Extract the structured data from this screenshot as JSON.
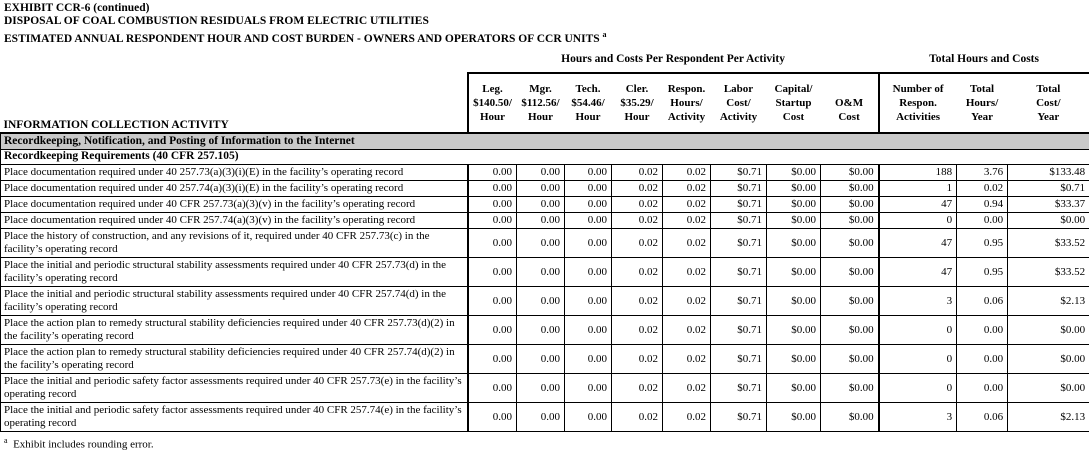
{
  "title": {
    "line1": "EXHIBIT CCR-6 (continued)",
    "line2": "DISPOSAL OF COAL COMBUSTION RESIDUALS FROM ELECTRIC UTILITIES",
    "line3": "ESTIMATED ANNUAL RESPONDENT HOUR AND COST BURDEN - OWNERS AND OPERATORS OF CCR UNITS",
    "line3_sup": "a"
  },
  "table": {
    "group_headers": {
      "per_activity": "Hours and Costs Per Respondent Per Activity",
      "totals": "Total Hours and Costs"
    },
    "activity_header": "INFORMATION COLLECTION ACTIVITY",
    "columns": [
      {
        "lines": [
          "Leg.",
          "$140.50/",
          "Hour"
        ]
      },
      {
        "lines": [
          "Mgr.",
          "$112.56/",
          "Hour"
        ]
      },
      {
        "lines": [
          "Tech.",
          "$54.46/",
          "Hour"
        ]
      },
      {
        "lines": [
          "Cler.",
          "$35.29/",
          "Hour"
        ]
      },
      {
        "lines": [
          "Respon.",
          "Hours/",
          "Activity"
        ]
      },
      {
        "lines": [
          "Labor",
          "Cost/",
          "Activity"
        ]
      },
      {
        "lines": [
          "Capital/",
          "Startup",
          "Cost"
        ]
      },
      {
        "lines": [
          "",
          "O&M",
          "Cost"
        ]
      },
      {
        "lines": [
          "Number of",
          "Respon.",
          "Activities"
        ]
      },
      {
        "lines": [
          "Total",
          "Hours/",
          "Year"
        ]
      },
      {
        "lines": [
          "Total",
          "Cost/",
          "Year"
        ]
      }
    ],
    "section_header": "Recordkeeping, Notification, and Posting of Information to the Internet",
    "subsection_header": "Recordkeeping Requirements (40 CFR 257.105)",
    "rows": [
      {
        "activity": "Place documentation required under 40 257.73(a)(3)(i)(E) in the facility’s operating record",
        "values": [
          "0.00",
          "0.00",
          "0.00",
          "0.02",
          "0.02",
          "$0.71",
          "$0.00",
          "$0.00",
          "188",
          "3.76",
          "$133.48"
        ]
      },
      {
        "activity": "Place documentation required under 40 257.74(a)(3)(i)(E) in the facility’s operating record",
        "values": [
          "0.00",
          "0.00",
          "0.00",
          "0.02",
          "0.02",
          "$0.71",
          "$0.00",
          "$0.00",
          "1",
          "0.02",
          "$0.71"
        ]
      },
      {
        "activity": "Place documentation required under 40 CFR 257.73(a)(3)(v) in the facility’s operating record",
        "values": [
          "0.00",
          "0.00",
          "0.00",
          "0.02",
          "0.02",
          "$0.71",
          "$0.00",
          "$0.00",
          "47",
          "0.94",
          "$33.37"
        ]
      },
      {
        "activity": "Place documentation required under 40 CFR 257.74(a)(3)(v) in the facility’s operating record",
        "values": [
          "0.00",
          "0.00",
          "0.00",
          "0.02",
          "0.02",
          "$0.71",
          "$0.00",
          "$0.00",
          "0",
          "0.00",
          "$0.00"
        ]
      },
      {
        "activity": "Place the history of construction, and any revisions of it, required under 40 CFR 257.73(c) in the facility’s operating record",
        "values": [
          "0.00",
          "0.00",
          "0.00",
          "0.02",
          "0.02",
          "$0.71",
          "$0.00",
          "$0.00",
          "47",
          "0.95",
          "$33.52"
        ]
      },
      {
        "activity": "Place the initial and periodic structural stability assessments required under 40 CFR 257.73(d) in the facility’s operating record",
        "values": [
          "0.00",
          "0.00",
          "0.00",
          "0.02",
          "0.02",
          "$0.71",
          "$0.00",
          "$0.00",
          "47",
          "0.95",
          "$33.52"
        ]
      },
      {
        "activity": "Place the initial and periodic structural stability assessments required under 40 CFR 257.74(d) in the facility’s operating record",
        "values": [
          "0.00",
          "0.00",
          "0.00",
          "0.02",
          "0.02",
          "$0.71",
          "$0.00",
          "$0.00",
          "3",
          "0.06",
          "$2.13"
        ]
      },
      {
        "activity": "Place the action plan to remedy structural stability deficiencies required under 40 CFR 257.73(d)(2) in the facility’s  operating record",
        "values": [
          "0.00",
          "0.00",
          "0.00",
          "0.02",
          "0.02",
          "$0.71",
          "$0.00",
          "$0.00",
          "0",
          "0.00",
          "$0.00"
        ]
      },
      {
        "activity": "Place the action plan to remedy structural stability deficiencies required under 40 CFR 257.74(d)(2) in the facility’s  operating record",
        "values": [
          "0.00",
          "0.00",
          "0.00",
          "0.02",
          "0.02",
          "$0.71",
          "$0.00",
          "$0.00",
          "0",
          "0.00",
          "$0.00"
        ]
      },
      {
        "activity": "Place the initial and periodic safety factor assessments required under 40 CFR 257.73(e) in the facility’s operating record",
        "values": [
          "0.00",
          "0.00",
          "0.00",
          "0.02",
          "0.02",
          "$0.71",
          "$0.00",
          "$0.00",
          "0",
          "0.00",
          "$0.00"
        ]
      },
      {
        "activity": "Place the initial and periodic safety factor assessments required under 40 CFR 257.74(e) in the facility’s operating record",
        "values": [
          "0.00",
          "0.00",
          "0.00",
          "0.02",
          "0.02",
          "$0.71",
          "$0.00",
          "$0.00",
          "3",
          "0.06",
          "$2.13"
        ]
      }
    ]
  },
  "footnote": {
    "sup": "a",
    "text": "Exhibit includes rounding error."
  },
  "colors": {
    "section_bg": "#c9c9c9",
    "border": "#000000"
  }
}
